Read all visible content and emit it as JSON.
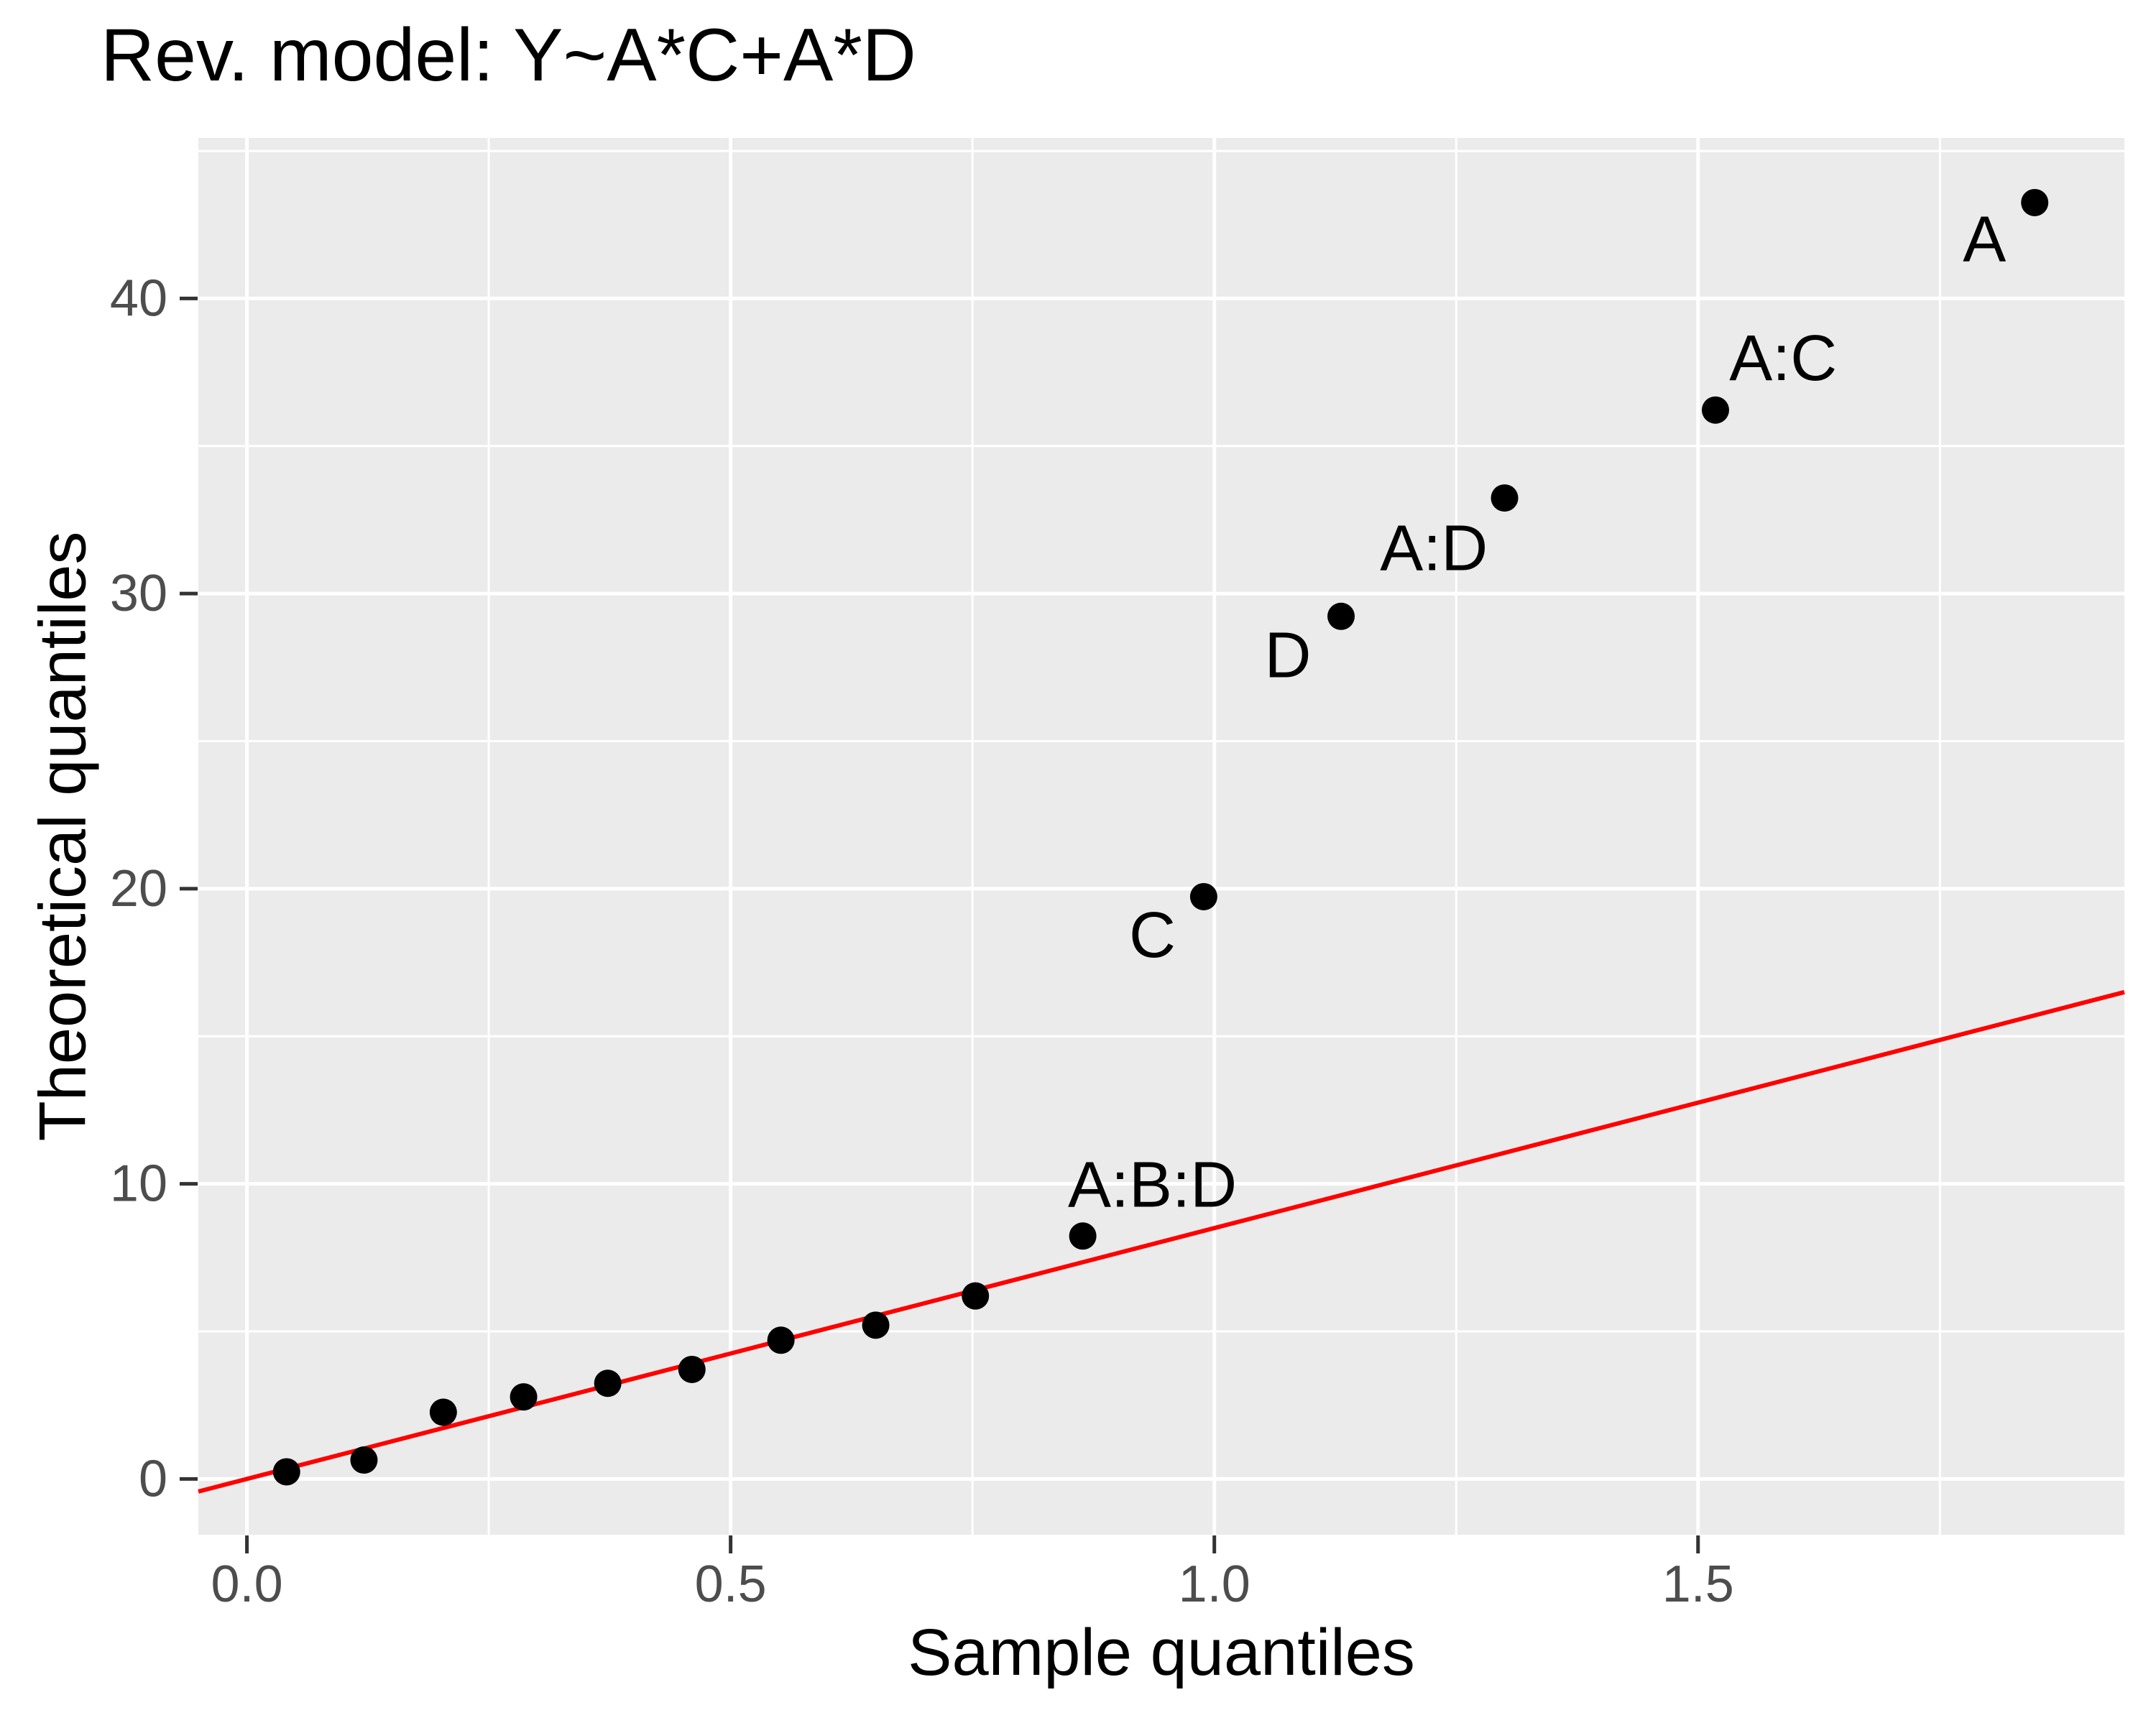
{
  "page": {
    "background": "#FFFFFF"
  },
  "chart_data": {
    "type": "scatter",
    "title": "Rev. model: Y~A*C+A*D",
    "xlabel": "Sample quantiles",
    "ylabel": "Theoretical quantiles",
    "xlim": [
      -0.0502,
      1.9407
    ],
    "ylim": [
      -1.891,
      45.44
    ],
    "grid": "on",
    "legend": "none",
    "panel_bg": "#EBEBEB",
    "grid_color": "#FFFFFF",
    "tick_color": "#333333",
    "tick_label_color": "#4D4D4D",
    "point_color": "#000000",
    "annotation_color": "#000000",
    "x_ticks": [
      {
        "value": 0.0,
        "label": "0.0"
      },
      {
        "value": 0.5,
        "label": "0.5"
      },
      {
        "value": 1.0,
        "label": "1.0"
      },
      {
        "value": 1.5,
        "label": "1.5"
      }
    ],
    "y_ticks": [
      {
        "value": 0,
        "label": "0"
      },
      {
        "value": 10,
        "label": "10"
      },
      {
        "value": 20,
        "label": "20"
      },
      {
        "value": 30,
        "label": "30"
      },
      {
        "value": 40,
        "label": "40"
      }
    ],
    "x_minor": [
      0.25,
      0.75,
      1.25,
      1.75
    ],
    "y_minor": [
      5,
      15,
      25,
      35,
      45
    ],
    "reference_line": {
      "slope": 8.5,
      "intercept": 0,
      "color": "#FF0000"
    },
    "points": [
      {
        "x": 0.041,
        "y": 0.24,
        "label": ""
      },
      {
        "x": 0.121,
        "y": 0.64,
        "label": ""
      },
      {
        "x": 0.203,
        "y": 2.26,
        "label": ""
      },
      {
        "x": 0.286,
        "y": 2.78,
        "label": ""
      },
      {
        "x": 0.373,
        "y": 3.24,
        "label": ""
      },
      {
        "x": 0.46,
        "y": 3.71,
        "label": ""
      },
      {
        "x": 0.552,
        "y": 4.7,
        "label": ""
      },
      {
        "x": 0.65,
        "y": 5.21,
        "label": ""
      },
      {
        "x": 0.753,
        "y": 6.2,
        "label": ""
      },
      {
        "x": 0.864,
        "y": 8.23,
        "label": "A:B:D"
      },
      {
        "x": 0.989,
        "y": 19.73,
        "label": "C"
      },
      {
        "x": 1.131,
        "y": 29.23,
        "label": "D"
      },
      {
        "x": 1.3,
        "y": 33.24,
        "label": "A:D"
      },
      {
        "x": 1.518,
        "y": 36.22,
        "label": "A:C"
      },
      {
        "x": 1.848,
        "y": 43.25,
        "label": "A"
      }
    ],
    "annotations": [
      {
        "text": "A:B:D",
        "x": 0.936,
        "y": 9.96
      },
      {
        "text": "C",
        "x": 0.936,
        "y": 18.41
      },
      {
        "text": "D",
        "x": 1.076,
        "y": 27.9
      },
      {
        "text": "A:D",
        "x": 1.227,
        "y": 31.52
      },
      {
        "text": "A:C",
        "x": 1.588,
        "y": 37.97
      },
      {
        "text": "A",
        "x": 1.796,
        "y": 41.99
      }
    ]
  }
}
